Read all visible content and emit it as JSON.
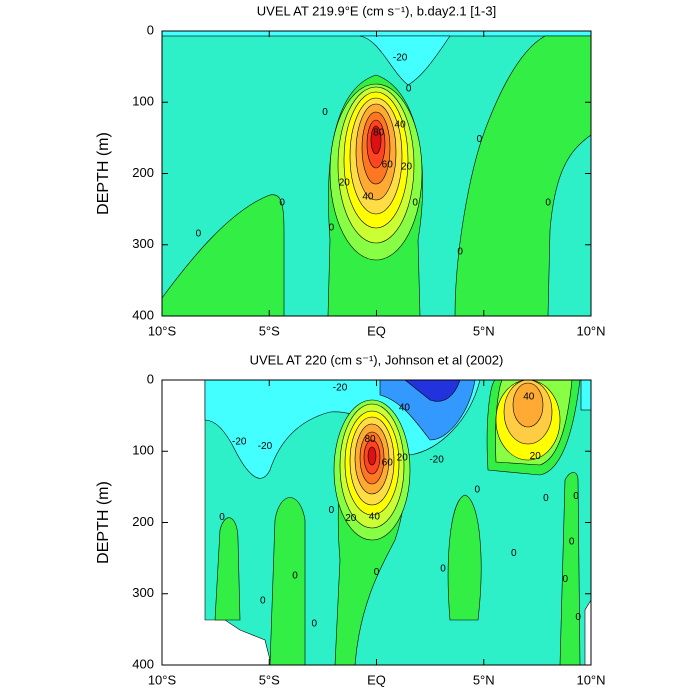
{
  "chart_data": [
    {
      "type": "contour",
      "title": "UVEL AT 219.9°E (cm s⁻¹), b.day2.1 [1-3]",
      "ylabel": "DEPTH (m)",
      "xlim": [
        -10,
        10
      ],
      "xticks": [
        {
          "value": -10,
          "label": "10°S"
        },
        {
          "value": -5,
          "label": "5°S"
        },
        {
          "value": 0,
          "label": "EQ"
        },
        {
          "value": 5,
          "label": "5°N"
        },
        {
          "value": 10,
          "label": "10°N"
        }
      ],
      "ylim": [
        400,
        0
      ],
      "yticks": [
        0,
        100,
        200,
        300,
        400
      ],
      "contour_labels": [
        {
          "x": 1.1,
          "y": 38,
          "value": -20
        },
        {
          "x": 1.5,
          "y": 81,
          "value": 0
        },
        {
          "x": 1.1,
          "y": 132,
          "value": 40
        },
        {
          "x": 0.1,
          "y": 143,
          "value": 80
        },
        {
          "x": 0.5,
          "y": 188,
          "value": 60
        },
        {
          "x": 1.4,
          "y": 191,
          "value": 20
        },
        {
          "x": -1.5,
          "y": 213,
          "value": 20
        },
        {
          "x": -0.4,
          "y": 233,
          "value": 40
        },
        {
          "x": -2.4,
          "y": 114,
          "value": 0
        },
        {
          "x": -4.4,
          "y": 241,
          "value": 0
        },
        {
          "x": -8.3,
          "y": 285,
          "value": 0
        },
        {
          "x": -2.1,
          "y": 276,
          "value": 0
        },
        {
          "x": 1.8,
          "y": 241,
          "value": 0
        },
        {
          "x": 4.8,
          "y": 152,
          "value": 0
        },
        {
          "x": 3.9,
          "y": 310,
          "value": 0
        },
        {
          "x": 8.0,
          "y": 241,
          "value": 0
        }
      ]
    },
    {
      "type": "contour",
      "title": "UVEL AT 220 (cm s⁻¹), Johnson et al (2002)",
      "ylabel": "DEPTH (m)",
      "xlim": [
        -10,
        10
      ],
      "xticks": [
        {
          "value": -10,
          "label": "10°S"
        },
        {
          "value": -5,
          "label": "5°S"
        },
        {
          "value": 0,
          "label": "EQ"
        },
        {
          "value": 5,
          "label": "5°N"
        },
        {
          "value": 10,
          "label": "10°N"
        }
      ],
      "ylim": [
        400,
        0
      ],
      "yticks": [
        0,
        100,
        200,
        300,
        400
      ],
      "contour_labels": [
        {
          "x": -1.7,
          "y": 11,
          "value": -20
        },
        {
          "x": 1.3,
          "y": 39,
          "value": 40
        },
        {
          "x": -6.4,
          "y": 87,
          "value": -20
        },
        {
          "x": -5.2,
          "y": 93,
          "value": -20
        },
        {
          "x": -0.3,
          "y": 83,
          "value": 80
        },
        {
          "x": 0.5,
          "y": 116,
          "value": 60
        },
        {
          "x": 1.2,
          "y": 109,
          "value": 20
        },
        {
          "x": 2.8,
          "y": 112,
          "value": -20
        },
        {
          "x": 7.1,
          "y": 24,
          "value": 40
        },
        {
          "x": 7.4,
          "y": 107,
          "value": 20
        },
        {
          "x": 4.7,
          "y": 154,
          "value": 0
        },
        {
          "x": -1.2,
          "y": 194,
          "value": 20
        },
        {
          "x": -0.1,
          "y": 192,
          "value": 40
        },
        {
          "x": -7.2,
          "y": 193,
          "value": 0
        },
        {
          "x": -2.1,
          "y": 183,
          "value": 0
        },
        {
          "x": 7.9,
          "y": 166,
          "value": 0
        },
        {
          "x": 9.3,
          "y": 163,
          "value": 0
        },
        {
          "x": 9.1,
          "y": 227,
          "value": 0
        },
        {
          "x": 6.4,
          "y": 243,
          "value": 0
        },
        {
          "x": -3.8,
          "y": 275,
          "value": 0
        },
        {
          "x": 3.1,
          "y": 265,
          "value": 0
        },
        {
          "x": 0,
          "y": 270,
          "value": 0
        },
        {
          "x": -5.3,
          "y": 310,
          "value": 0
        },
        {
          "x": 8.8,
          "y": 280,
          "value": 0
        },
        {
          "x": 9.4,
          "y": 333,
          "value": 0
        },
        {
          "x": -2.9,
          "y": 342,
          "value": 0
        }
      ]
    }
  ]
}
